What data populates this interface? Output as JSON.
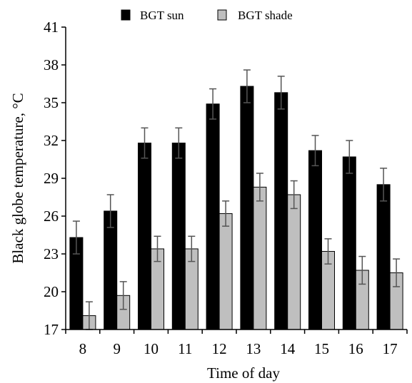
{
  "chart_data": {
    "type": "bar",
    "title": "",
    "xlabel": "Time of day",
    "ylabel": "Black globe temperature, °C",
    "categories": [
      "8",
      "9",
      "10",
      "11",
      "12",
      "13",
      "14",
      "15",
      "16",
      "17"
    ],
    "ylim": [
      17,
      41
    ],
    "yticks": [
      17,
      20,
      23,
      26,
      29,
      32,
      35,
      38,
      41
    ],
    "legend_position": "top",
    "grid": false,
    "series": [
      {
        "name": "BGT sun",
        "color": "#000000",
        "values": [
          24.3,
          26.4,
          31.8,
          31.8,
          34.9,
          36.3,
          35.8,
          31.2,
          30.7,
          28.5
        ],
        "errors": [
          1.3,
          1.3,
          1.2,
          1.2,
          1.2,
          1.3,
          1.3,
          1.2,
          1.3,
          1.3
        ]
      },
      {
        "name": "BGT shade",
        "color": "#bfbfbf",
        "values": [
          18.1,
          19.7,
          23.4,
          23.4,
          26.2,
          28.3,
          27.7,
          23.2,
          21.7,
          21.5
        ],
        "errors": [
          1.1,
          1.1,
          1.0,
          1.0,
          1.0,
          1.1,
          1.1,
          1.0,
          1.1,
          1.1
        ]
      }
    ]
  }
}
